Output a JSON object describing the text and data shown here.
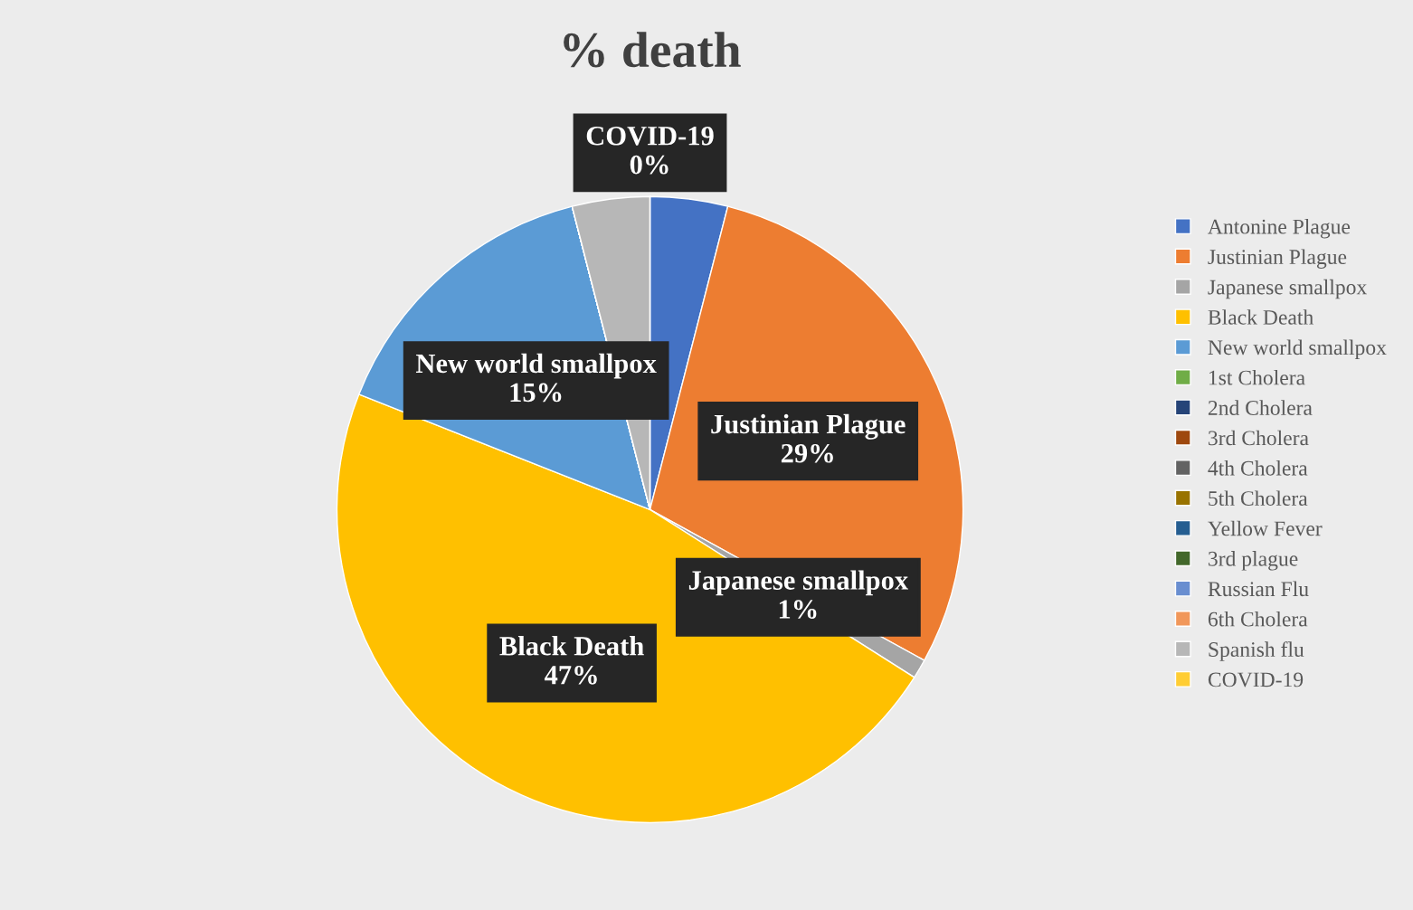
{
  "chart_data": {
    "type": "pie",
    "title": "% death",
    "categories": [
      "Antonine Plague",
      "Justinian Plague",
      "Japanese smallpox",
      "Black Death",
      "New world smallpox",
      "1st Cholera",
      "2nd Cholera",
      "3rd Cholera",
      "4th Cholera",
      "5th Cholera",
      "Yellow Fever",
      "3rd plague",
      "Russian Flu",
      "6th Cholera",
      "Spanish flu",
      "COVID-19"
    ],
    "values": [
      4,
      29,
      1,
      47,
      15,
      0,
      0,
      0,
      0,
      0,
      0,
      0,
      0,
      0,
      4,
      0
    ],
    "colors": [
      "#4472c4",
      "#ed7d31",
      "#a5a5a5",
      "#ffc000",
      "#5b9bd5",
      "#70ad47",
      "#264478",
      "#9e480e",
      "#636363",
      "#997300",
      "#255e91",
      "#43682b",
      "#698ed0",
      "#f1975a",
      "#b7b7b7",
      "#ffcd33"
    ],
    "value_labels": [
      null,
      "29%",
      "1%",
      "47%",
      "15%",
      null,
      null,
      null,
      null,
      null,
      null,
      null,
      null,
      null,
      null,
      "0%"
    ],
    "legend": "right"
  }
}
